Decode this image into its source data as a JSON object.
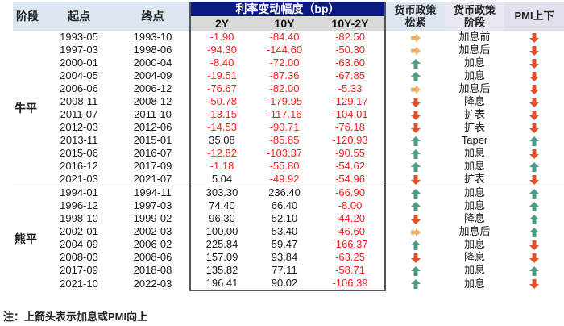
{
  "header": {
    "phase": "阶段",
    "start": "起点",
    "end": "终点",
    "rate_group": "利率变动幅度（bp）",
    "col_2y": "2Y",
    "col_10y": "10Y",
    "col_spread": "10Y-2Y",
    "policy_line1": "货币政策",
    "policy_line2": "松紧",
    "stage_line1": "货币政策",
    "stage_line2": "阶段",
    "pmi": "PMI上下"
  },
  "colors": {
    "negative": "#ff1a1a",
    "up_arrow": "#4f9a85",
    "down_arrow": "#e0512b",
    "right_arrow": "#f0b266",
    "rate_header_bg": "#0a1a82"
  },
  "groups": [
    {
      "label": "牛平",
      "rows": [
        {
          "start": "1993-05",
          "end": "1993-10",
          "y2": "-1.90",
          "y10": "-84.40",
          "spread": "-82.50",
          "policy": "right",
          "stage": "加息前",
          "pmi": "down"
        },
        {
          "start": "1997-03",
          "end": "1998-06",
          "y2": "-94.30",
          "y10": "-144.60",
          "spread": "-50.30",
          "policy": "right",
          "stage": "加息后",
          "pmi": "down"
        },
        {
          "start": "2000-01",
          "end": "2000-04",
          "y2": "-8.40",
          "y10": "-72.00",
          "spread": "-63.60",
          "policy": "up",
          "stage": "加息",
          "pmi": "down"
        },
        {
          "start": "2004-05",
          "end": "2004-09",
          "y2": "-19.51",
          "y10": "-87.36",
          "spread": "-67.85",
          "policy": "up",
          "stage": "加息",
          "pmi": "down"
        },
        {
          "start": "2006-06",
          "end": "2006-12",
          "y2": "-76.67",
          "y10": "-82.00",
          "spread": "-5.33",
          "policy": "right",
          "stage": "加息后",
          "pmi": "down"
        },
        {
          "start": "2008-11",
          "end": "2008-12",
          "y2": "-50.78",
          "y10": "-179.95",
          "spread": "-129.17",
          "policy": "down",
          "stage": "降息",
          "pmi": "down"
        },
        {
          "start": "2011-07",
          "end": "2011-10",
          "y2": "-13.15",
          "y10": "-117.16",
          "spread": "-104.01",
          "policy": "down",
          "stage": "扩表",
          "pmi": "down"
        },
        {
          "start": "2012-03",
          "end": "2012-06",
          "y2": "-14.53",
          "y10": "-90.71",
          "spread": "-76.18",
          "policy": "down",
          "stage": "扩表",
          "pmi": "down"
        },
        {
          "start": "2013-11",
          "end": "2015-01",
          "y2": "35.08",
          "y10": "-85.85",
          "spread": "-120.93",
          "policy": "up",
          "stage": "Taper",
          "pmi": "up"
        },
        {
          "start": "2015-06",
          "end": "2016-07",
          "y2": "-12.82",
          "y10": "-103.37",
          "spread": "-90.55",
          "policy": "up",
          "stage": "加息",
          "pmi": "down"
        },
        {
          "start": "2016-12",
          "end": "2017-09",
          "y2": "-1.18",
          "y10": "-55.80",
          "spread": "-54.62",
          "policy": "up",
          "stage": "加息",
          "pmi": "up"
        },
        {
          "start": "2021-03",
          "end": "2021-07",
          "y2": "5.04",
          "y10": "-49.92",
          "spread": "-54.96",
          "policy": "down",
          "stage": "扩表",
          "pmi": "down"
        }
      ]
    },
    {
      "label": "熊平",
      "rows": [
        {
          "start": "1994-01",
          "end": "1994-11",
          "y2": "303.30",
          "y10": "236.40",
          "spread": "-66.90",
          "policy": "up",
          "stage": "加息",
          "pmi": "up"
        },
        {
          "start": "1996-12",
          "end": "1997-03",
          "y2": "74.40",
          "y10": "66.40",
          "spread": "-8.00",
          "policy": "up",
          "stage": "加息",
          "pmi": "up"
        },
        {
          "start": "1998-10",
          "end": "1999-02",
          "y2": "96.30",
          "y10": "52.10",
          "spread": "-44.20",
          "policy": "down",
          "stage": "降息",
          "pmi": "up"
        },
        {
          "start": "2002-01",
          "end": "2002-03",
          "y2": "100.00",
          "y10": "53.40",
          "spread": "-46.60",
          "policy": "right",
          "stage": "加息后",
          "pmi": "up"
        },
        {
          "start": "2004-09",
          "end": "2006-02",
          "y2": "225.84",
          "y10": "59.47",
          "spread": "-166.37",
          "policy": "up",
          "stage": "加息",
          "pmi": "down"
        },
        {
          "start": "2008-03",
          "end": "2008-06",
          "y2": "157.09",
          "y10": "93.84",
          "spread": "-63.25",
          "policy": "down",
          "stage": "降息",
          "pmi": "down"
        },
        {
          "start": "2017-09",
          "end": "2018-08",
          "y2": "135.82",
          "y10": "77.11",
          "spread": "-58.71",
          "policy": "up",
          "stage": "加息",
          "pmi": "up"
        },
        {
          "start": "2021-10",
          "end": "2022-03",
          "y2": "196.41",
          "y10": "90.02",
          "spread": "-106.39",
          "policy": "up",
          "stage": "加息",
          "pmi": "down"
        }
      ]
    }
  ],
  "note": "注：上箭头表示加息或PMI向上"
}
